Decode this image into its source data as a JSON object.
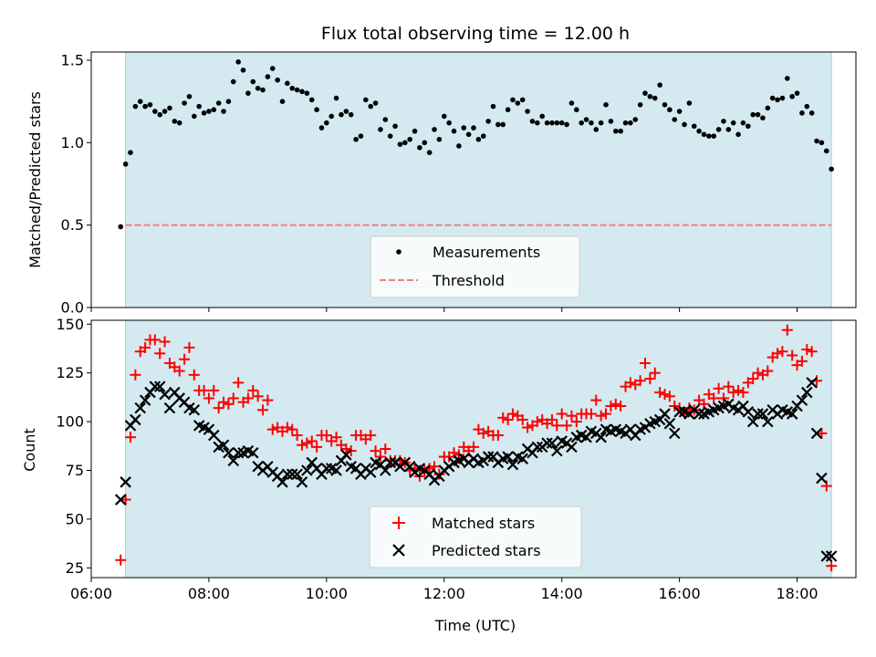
{
  "chart_data": [
    {
      "type": "scatter",
      "title": "Flux total observing time = 12.00 h",
      "xlabel": "",
      "ylabel": "Matched/Predicted stars",
      "xlim": [
        "06:00",
        "19:00"
      ],
      "ylim": [
        0,
        1.55
      ],
      "yticks": [
        0.0,
        0.5,
        1.0,
        1.5
      ],
      "ytick_labels": [
        "0.0",
        "0.5",
        "1.0",
        "1.5"
      ],
      "xticks": [
        "06:00",
        "08:00",
        "10:00",
        "12:00",
        "14:00",
        "16:00",
        "18:00"
      ],
      "shaded_span": [
        "06:35",
        "18:35"
      ],
      "shade_color": "#d4eaf0",
      "legend_position": "bottom-center",
      "threshold": {
        "name": "Threshold",
        "value": 0.5,
        "color": "#f08080",
        "style": "dashed"
      },
      "series": [
        {
          "name": "Measurements",
          "marker": "dot",
          "color": "#000000",
          "x": [
            "06:30",
            "06:35",
            "06:40",
            "06:45",
            "06:50",
            "06:55",
            "07:00",
            "07:05",
            "07:10",
            "07:15",
            "07:20",
            "07:25",
            "07:30",
            "07:35",
            "07:40",
            "07:45",
            "07:50",
            "07:55",
            "08:00",
            "08:05",
            "08:10",
            "08:15",
            "08:20",
            "08:25",
            "08:30",
            "08:35",
            "08:40",
            "08:45",
            "08:50",
            "08:55",
            "09:00",
            "09:05",
            "09:10",
            "09:15",
            "09:20",
            "09:25",
            "09:30",
            "09:35",
            "09:40",
            "09:45",
            "09:50",
            "09:55",
            "10:00",
            "10:05",
            "10:10",
            "10:15",
            "10:20",
            "10:25",
            "10:30",
            "10:35",
            "10:40",
            "10:45",
            "10:50",
            "10:55",
            "11:00",
            "11:05",
            "11:10",
            "11:15",
            "11:20",
            "11:25",
            "11:30",
            "11:35",
            "11:40",
            "11:45",
            "11:50",
            "11:55",
            "12:00",
            "12:05",
            "12:10",
            "12:15",
            "12:20",
            "12:25",
            "12:30",
            "12:35",
            "12:40",
            "12:45",
            "12:50",
            "12:55",
            "13:00",
            "13:05",
            "13:10",
            "13:15",
            "13:20",
            "13:25",
            "13:30",
            "13:35",
            "13:40",
            "13:45",
            "13:50",
            "13:55",
            "14:00",
            "14:05",
            "14:10",
            "14:15",
            "14:20",
            "14:25",
            "14:30",
            "14:35",
            "14:40",
            "14:45",
            "14:50",
            "14:55",
            "15:00",
            "15:05",
            "15:10",
            "15:15",
            "15:20",
            "15:25",
            "15:30",
            "15:35",
            "15:40",
            "15:45",
            "15:50",
            "15:55",
            "16:00",
            "16:05",
            "16:10",
            "16:15",
            "16:20",
            "16:25",
            "16:30",
            "16:35",
            "16:40",
            "16:45",
            "16:50",
            "16:55",
            "17:00",
            "17:05",
            "17:10",
            "17:15",
            "17:20",
            "17:25",
            "17:30",
            "17:35",
            "17:40",
            "17:45",
            "17:50",
            "17:55",
            "18:00",
            "18:05",
            "18:10",
            "18:15",
            "18:20",
            "18:25",
            "18:30",
            "18:35"
          ],
          "y": [
            0.49,
            0.87,
            0.94,
            1.22,
            1.25,
            1.22,
            1.23,
            1.19,
            1.17,
            1.19,
            1.21,
            1.13,
            1.12,
            1.24,
            1.28,
            1.16,
            1.22,
            1.18,
            1.19,
            1.2,
            1.24,
            1.19,
            1.25,
            1.37,
            1.49,
            1.44,
            1.3,
            1.37,
            1.33,
            1.32,
            1.4,
            1.45,
            1.38,
            1.25,
            1.36,
            1.33,
            1.32,
            1.31,
            1.3,
            1.26,
            1.2,
            1.09,
            1.12,
            1.16,
            1.27,
            1.17,
            1.19,
            1.17,
            1.02,
            1.04,
            1.26,
            1.22,
            1.24,
            1.08,
            1.14,
            1.04,
            1.1,
            0.99,
            1.0,
            1.02,
            1.07,
            0.97,
            1.0,
            0.94,
            1.08,
            1.02,
            1.16,
            1.12,
            1.07,
            0.98,
            1.09,
            1.05,
            1.09,
            1.02,
            1.04,
            1.13,
            1.22,
            1.11,
            1.11,
            1.2,
            1.26,
            1.24,
            1.26,
            1.19,
            1.13,
            1.12,
            1.16,
            1.12,
            1.12,
            1.12,
            1.12,
            1.11,
            1.24,
            1.2,
            1.12,
            1.14,
            1.12,
            1.08,
            1.12,
            1.23,
            1.13,
            1.07,
            1.07,
            1.12,
            1.12,
            1.14,
            1.23,
            1.3,
            1.28,
            1.27,
            1.35,
            1.23,
            1.2,
            1.14,
            1.19,
            1.11,
            1.24,
            1.1,
            1.07,
            1.05,
            1.04,
            1.04,
            1.08,
            1.13,
            1.08,
            1.12,
            1.05,
            1.12,
            1.1,
            1.17,
            1.17,
            1.15,
            1.21,
            1.27,
            1.26,
            1.27,
            1.39,
            1.28,
            1.3,
            1.18,
            1.22,
            1.18,
            1.01,
            1.0,
            0.95,
            0.84
          ]
        }
      ]
    },
    {
      "type": "scatter",
      "title": "",
      "xlabel": "Time (UTC)",
      "ylabel": "Count",
      "xlim": [
        "06:00",
        "19:00"
      ],
      "ylim": [
        20,
        152
      ],
      "yticks": [
        25,
        50,
        75,
        100,
        125,
        150
      ],
      "ytick_labels": [
        "25",
        "50",
        "75",
        "100",
        "125",
        "150"
      ],
      "xticks": [
        "06:00",
        "08:00",
        "10:00",
        "12:00",
        "14:00",
        "16:00",
        "18:00"
      ],
      "xtick_labels": [
        "06:00",
        "08:00",
        "10:00",
        "12:00",
        "14:00",
        "16:00",
        "18:00"
      ],
      "shaded_span": [
        "06:35",
        "18:35"
      ],
      "shade_color": "#d4eaf0",
      "legend_position": "bottom-center",
      "series": [
        {
          "name": "Matched stars",
          "marker": "plus",
          "color": "#ff0000",
          "x": [
            "06:30",
            "06:35",
            "06:40",
            "06:45",
            "06:50",
            "06:55",
            "07:00",
            "07:05",
            "07:10",
            "07:15",
            "07:20",
            "07:25",
            "07:30",
            "07:35",
            "07:40",
            "07:45",
            "07:50",
            "07:55",
            "08:00",
            "08:05",
            "08:10",
            "08:15",
            "08:20",
            "08:25",
            "08:30",
            "08:35",
            "08:40",
            "08:45",
            "08:50",
            "08:55",
            "09:00",
            "09:05",
            "09:10",
            "09:15",
            "09:20",
            "09:25",
            "09:30",
            "09:35",
            "09:40",
            "09:45",
            "09:50",
            "09:55",
            "10:00",
            "10:05",
            "10:10",
            "10:15",
            "10:20",
            "10:25",
            "10:30",
            "10:35",
            "10:40",
            "10:45",
            "10:50",
            "10:55",
            "11:00",
            "11:05",
            "11:10",
            "11:15",
            "11:20",
            "11:25",
            "11:30",
            "11:35",
            "11:40",
            "11:45",
            "11:50",
            "11:55",
            "12:00",
            "12:05",
            "12:10",
            "12:15",
            "12:20",
            "12:25",
            "12:30",
            "12:35",
            "12:40",
            "12:45",
            "12:50",
            "12:55",
            "13:00",
            "13:05",
            "13:10",
            "13:15",
            "13:20",
            "13:25",
            "13:30",
            "13:35",
            "13:40",
            "13:45",
            "13:50",
            "13:55",
            "14:00",
            "14:05",
            "14:10",
            "14:15",
            "14:20",
            "14:25",
            "14:30",
            "14:35",
            "14:40",
            "14:45",
            "14:50",
            "14:55",
            "15:00",
            "15:05",
            "15:10",
            "15:15",
            "15:20",
            "15:25",
            "15:30",
            "15:35",
            "15:40",
            "15:45",
            "15:50",
            "15:55",
            "16:00",
            "16:05",
            "16:10",
            "16:15",
            "16:20",
            "16:25",
            "16:30",
            "16:35",
            "16:40",
            "16:45",
            "16:50",
            "16:55",
            "17:00",
            "17:05",
            "17:10",
            "17:15",
            "17:20",
            "17:25",
            "17:30",
            "17:35",
            "17:40",
            "17:45",
            "17:50",
            "17:55",
            "18:00",
            "18:05",
            "18:10",
            "18:15",
            "18:20",
            "18:25",
            "18:30",
            "18:35"
          ],
          "y": [
            29,
            60,
            92,
            124,
            136,
            138,
            142,
            142,
            135,
            141,
            130,
            128,
            126,
            132,
            138,
            124,
            116,
            116,
            112,
            116,
            107,
            110,
            109,
            112,
            120,
            110,
            112,
            116,
            113,
            106,
            111,
            96,
            97,
            95,
            97,
            96,
            93,
            88,
            89,
            90,
            87,
            93,
            93,
            90,
            92,
            88,
            86,
            85,
            93,
            93,
            91,
            93,
            85,
            82,
            86,
            80,
            80,
            80,
            79,
            75,
            76,
            72,
            75,
            76,
            77,
            73,
            82,
            82,
            84,
            83,
            87,
            85,
            87,
            96,
            94,
            95,
            93,
            93,
            102,
            101,
            104,
            103,
            101,
            97,
            98,
            100,
            101,
            99,
            101,
            98,
            104,
            98,
            103,
            100,
            104,
            104,
            104,
            111,
            103,
            104,
            108,
            109,
            108,
            118,
            120,
            119,
            121,
            130,
            122,
            125,
            115,
            114,
            113,
            108,
            107,
            105,
            107,
            106,
            111,
            109,
            114,
            112,
            117,
            112,
            118,
            115,
            116,
            115,
            120,
            122,
            125,
            124,
            126,
            133,
            135,
            136,
            147,
            134,
            129,
            131,
            137,
            136,
            121,
            94,
            67,
            26
          ]
        },
        {
          "name": "Predicted stars",
          "marker": "x",
          "color": "#000000",
          "x": [
            "06:30",
            "06:35",
            "06:40",
            "06:45",
            "06:50",
            "06:55",
            "07:00",
            "07:05",
            "07:10",
            "07:15",
            "07:20",
            "07:25",
            "07:30",
            "07:35",
            "07:40",
            "07:45",
            "07:50",
            "07:55",
            "08:00",
            "08:05",
            "08:10",
            "08:15",
            "08:20",
            "08:25",
            "08:30",
            "08:35",
            "08:40",
            "08:45",
            "08:50",
            "08:55",
            "09:00",
            "09:05",
            "09:10",
            "09:15",
            "09:20",
            "09:25",
            "09:30",
            "09:35",
            "09:40",
            "09:45",
            "09:50",
            "09:55",
            "10:00",
            "10:05",
            "10:10",
            "10:15",
            "10:20",
            "10:25",
            "10:30",
            "10:35",
            "10:40",
            "10:45",
            "10:50",
            "10:55",
            "11:00",
            "11:05",
            "11:10",
            "11:15",
            "11:20",
            "11:25",
            "11:30",
            "11:35",
            "11:40",
            "11:45",
            "11:50",
            "11:55",
            "12:00",
            "12:05",
            "12:10",
            "12:15",
            "12:20",
            "12:25",
            "12:30",
            "12:35",
            "12:40",
            "12:45",
            "12:50",
            "12:55",
            "13:00",
            "13:05",
            "13:10",
            "13:15",
            "13:20",
            "13:25",
            "13:30",
            "13:35",
            "13:40",
            "13:45",
            "13:50",
            "13:55",
            "14:00",
            "14:05",
            "14:10",
            "14:15",
            "14:20",
            "14:25",
            "14:30",
            "14:35",
            "14:40",
            "14:45",
            "14:50",
            "14:55",
            "15:00",
            "15:05",
            "15:10",
            "15:15",
            "15:20",
            "15:25",
            "15:30",
            "15:35",
            "15:40",
            "15:45",
            "15:50",
            "15:55",
            "16:00",
            "16:05",
            "16:10",
            "16:15",
            "16:20",
            "16:25",
            "16:30",
            "16:35",
            "16:40",
            "16:45",
            "16:50",
            "16:55",
            "17:00",
            "17:05",
            "17:10",
            "17:15",
            "17:20",
            "17:25",
            "17:30",
            "17:35",
            "17:40",
            "17:45",
            "17:50",
            "17:55",
            "18:00",
            "18:05",
            "18:10",
            "18:15",
            "18:20",
            "18:25",
            "18:30",
            "18:35"
          ],
          "y": [
            60,
            69,
            98,
            101,
            107,
            111,
            115,
            118,
            118,
            114,
            107,
            115,
            112,
            110,
            107,
            106,
            98,
            97,
            96,
            93,
            87,
            88,
            84,
            80,
            84,
            84,
            85,
            84,
            77,
            75,
            77,
            74,
            72,
            69,
            73,
            73,
            73,
            69,
            75,
            79,
            76,
            73,
            76,
            76,
            75,
            80,
            83,
            77,
            76,
            73,
            76,
            74,
            79,
            78,
            75,
            79,
            79,
            77,
            79,
            77,
            74,
            76,
            75,
            73,
            70,
            72,
            75,
            77,
            79,
            80,
            81,
            79,
            81,
            79,
            80,
            82,
            82,
            79,
            81,
            82,
            78,
            82,
            81,
            86,
            84,
            87,
            87,
            89,
            89,
            85,
            90,
            89,
            87,
            92,
            93,
            92,
            95,
            94,
            92,
            96,
            95,
            96,
            95,
            94,
            96,
            93,
            96,
            97,
            99,
            100,
            101,
            104,
            99,
            94,
            105,
            105,
            104,
            106,
            104,
            104,
            105,
            106,
            107,
            108,
            109,
            107,
            106,
            108,
            105,
            100,
            104,
            104,
            100,
            106,
            104,
            106,
            105,
            104,
            108,
            111,
            115,
            120,
            94,
            71,
            31,
            31
          ]
        }
      ]
    }
  ]
}
